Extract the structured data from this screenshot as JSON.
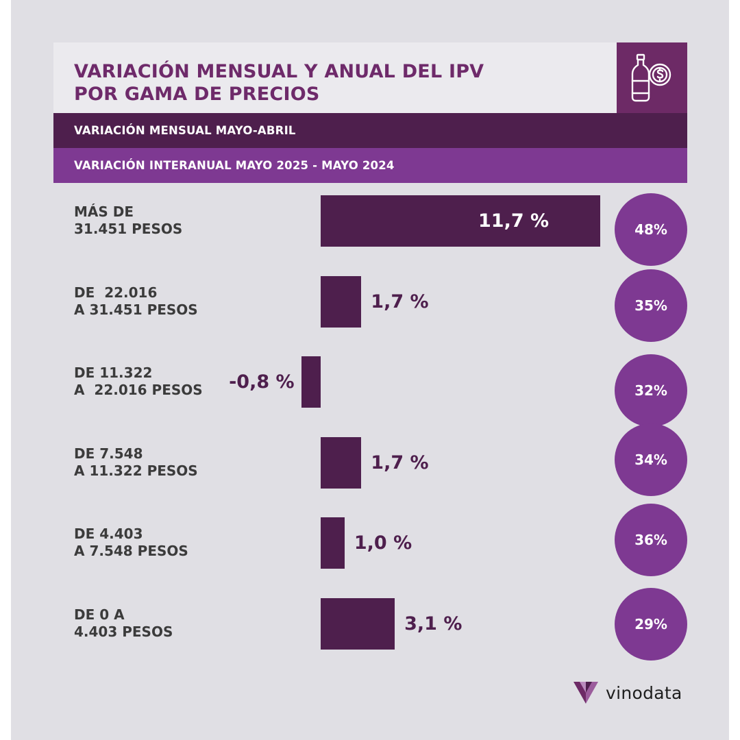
{
  "header": {
    "title_line1": "VARIACIÓN MENSUAL Y ANUAL DEL IPV",
    "title_line2": "POR GAMA DE PRECIOS",
    "icon": "wine-bottle-coin-icon"
  },
  "legend": {
    "monthly": "VARIACIÓN MENSUAL MAYO-ABRIL",
    "annual": "VARIACIÓN INTERANUAL  MAYO 2025 - MAYO 2024"
  },
  "colors": {
    "monthly": "#4e1f4d",
    "annual": "#7e3992",
    "title": "#6e2a6a",
    "background": "#e0dfe4"
  },
  "chart_data": {
    "type": "bar",
    "orientation": "horizontal",
    "categories": [
      [
        "MÁS DE",
        "31.451 PESOS"
      ],
      [
        "DE  22.016",
        "A 31.451 PESOS"
      ],
      [
        "DE 11.322",
        "A  22.016 PESOS"
      ],
      [
        "DE 7.548",
        "A 11.322 PESOS"
      ],
      [
        "DE 4.403",
        "A 7.548 PESOS"
      ],
      [
        "DE 0 A",
        "4.403 PESOS"
      ]
    ],
    "series": [
      {
        "name": "VARIACIÓN MENSUAL MAYO-ABRIL",
        "values": [
          11.7,
          1.7,
          -0.8,
          1.7,
          1.0,
          3.1
        ],
        "labels": [
          "11,7 %",
          "1,7 %",
          "-0,8 %",
          "1,7 %",
          "1,0 %",
          "3,1 %"
        ]
      },
      {
        "name": "VARIACIÓN INTERANUAL  MAYO 2025 - MAYO 2024",
        "values": [
          48,
          35,
          32,
          34,
          36,
          29
        ],
        "labels": [
          "48%",
          "35%",
          "32%",
          "34%",
          "36%",
          "29%"
        ]
      }
    ],
    "xlim": [
      -1,
      12
    ]
  },
  "brand": {
    "name": "vinodata",
    "logo": "vinodata-logo-icon"
  }
}
